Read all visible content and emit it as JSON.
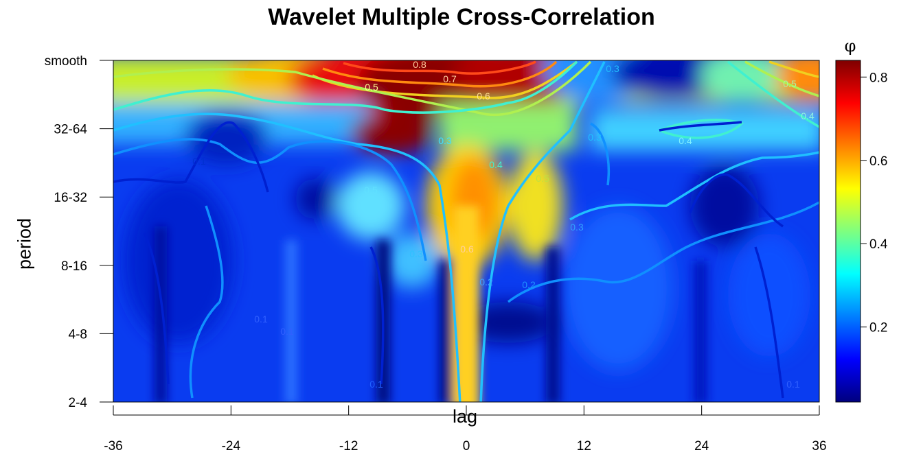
{
  "chart_data": {
    "type": "heatmap",
    "title": "Wavelet Multiple Cross-Correlation",
    "xlabel": "lag",
    "ylabel": "period",
    "x_ticks": [
      "-36",
      "-24",
      "-12",
      "0",
      "12",
      "24",
      "36"
    ],
    "xlim": [
      -36,
      36
    ],
    "y_ticks": [
      "2-4",
      "4-8",
      "8-16",
      "16-32",
      "32-64",
      "smooth"
    ],
    "colorbar": {
      "label": "φ",
      "range": [
        0.02,
        0.84
      ],
      "ticks": [
        "0.2",
        "0.4",
        "0.6",
        "0.8"
      ],
      "tick_values": [
        0.2,
        0.4,
        0.6,
        0.8
      ],
      "colormap": [
        "#00007f",
        "#0000ff",
        "#007fff",
        "#00ffff",
        "#7fff7f",
        "#ffff00",
        "#ff7f00",
        "#ff0000",
        "#7f0000"
      ]
    },
    "contour_levels": [
      0.1,
      0.2,
      0.3,
      0.4,
      0.5,
      0.6,
      0.7,
      0.8
    ],
    "contour_labels": [
      "0.8",
      "0.7",
      "0.6",
      "0.5",
      "0.5",
      "0.4",
      "0.4",
      "0.3",
      "0.3",
      "0.3",
      "0.4",
      "0.5",
      "0.5",
      "0.3",
      "0.2",
      "0.1",
      "0.1",
      "0.1",
      "0.1",
      "0.3",
      "0.2",
      "0.6",
      "0.1"
    ],
    "smooth_row": [
      {
        "lag": -36,
        "value": 0.46
      },
      {
        "lag": -30,
        "value": 0.44
      },
      {
        "lag": -24,
        "value": 0.42
      },
      {
        "lag": -18,
        "value": 0.5
      },
      {
        "lag": -12,
        "value": 0.66
      },
      {
        "lag": -6,
        "value": 0.8
      },
      {
        "lag": 0,
        "value": 0.84
      },
      {
        "lag": 6,
        "value": 0.72
      },
      {
        "lag": 10,
        "value": 0.4
      },
      {
        "lag": 14,
        "value": 0.3
      },
      {
        "lag": 20,
        "value": 0.1
      },
      {
        "lag": 26,
        "value": 0.3
      },
      {
        "lag": 32,
        "value": 0.5
      },
      {
        "lag": 36,
        "value": 0.62
      }
    ],
    "center_column": [
      {
        "period": "2-4",
        "value": 0.55
      },
      {
        "period": "4-8",
        "value": 0.6
      },
      {
        "period": "8-16",
        "value": 0.65
      },
      {
        "period": "16-32",
        "value": 0.62
      },
      {
        "period": "32-64",
        "value": 0.45
      },
      {
        "period": "smooth",
        "value": 0.84
      }
    ]
  }
}
